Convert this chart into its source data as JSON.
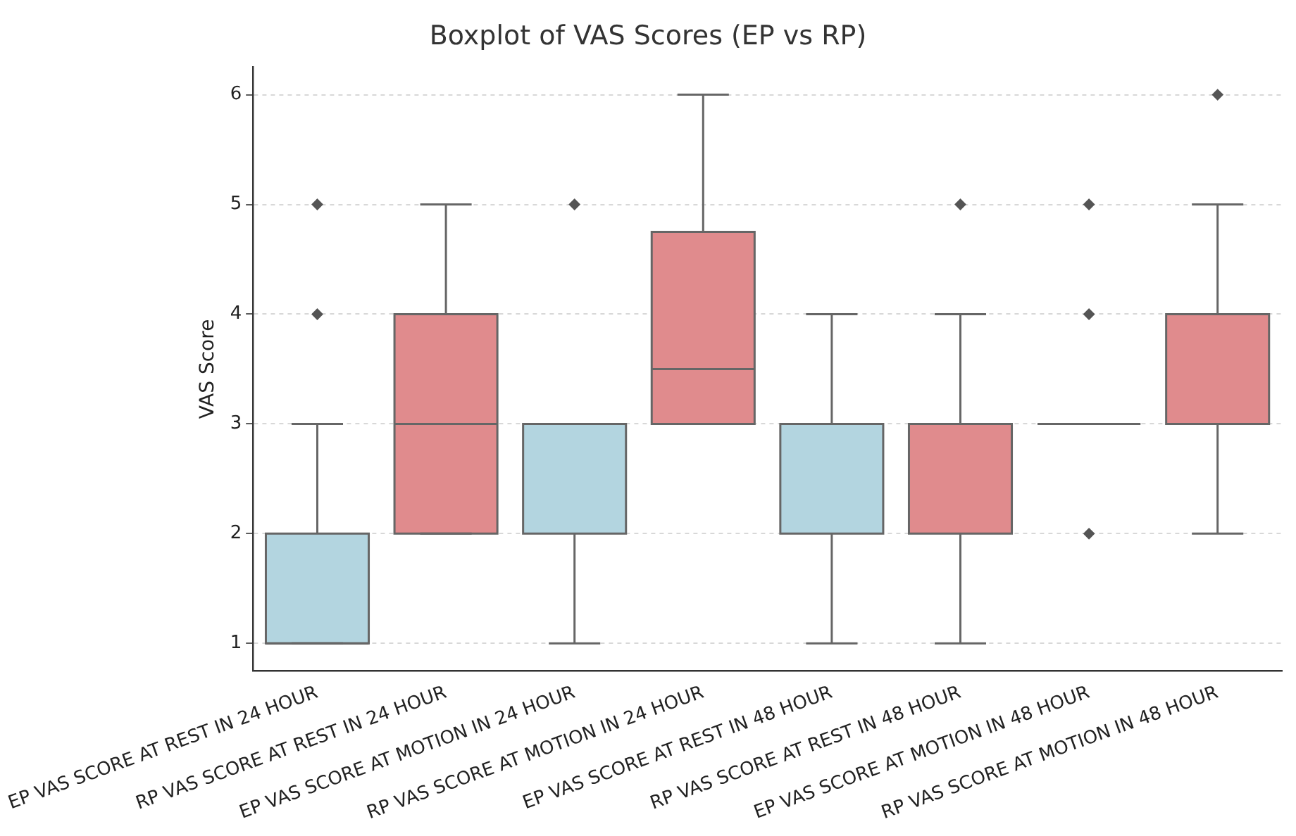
{
  "chart_data": {
    "type": "box",
    "title": "Boxplot of VAS Scores (EP vs RP)",
    "ylabel": "VAS Score",
    "categories": [
      "EP VAS SCORE AT REST IN 24 HOUR",
      "RP VAS SCORE AT REST IN 24 HOUR",
      "EP VAS SCORE AT MOTION IN 24 HOUR",
      "RP VAS SCORE AT MOTION IN 24 HOUR",
      "EP VAS SCORE AT REST IN 48 HOUR",
      "RP VAS SCORE AT REST IN 48 HOUR",
      "EP VAS SCORE AT MOTION IN 48 HOUR",
      "RP VAS SCORE AT MOTION IN 48 HOUR"
    ],
    "boxes": [
      {
        "low": 1,
        "q1": 1,
        "median": 1,
        "q3": 2,
        "high": 3,
        "outliers": [
          4,
          5
        ]
      },
      {
        "low": 2,
        "q1": 2,
        "median": 3,
        "q3": 4,
        "high": 5
      },
      {
        "low": 1,
        "q1": 2,
        "median": 3,
        "q3": 3,
        "high": 3,
        "outliers": [
          5
        ]
      },
      {
        "low": 3,
        "q1": 3,
        "median": 3.5,
        "q3": 4.75,
        "high": 6
      },
      {
        "low": 1,
        "q1": 2,
        "median": 3,
        "q3": 3,
        "high": 4
      },
      {
        "low": 1,
        "q1": 2,
        "median": 3,
        "q3": 3,
        "high": 4,
        "outliers": [
          5
        ]
      },
      {
        "low": 3,
        "q1": 3,
        "median": 3,
        "q3": 3,
        "high": 3,
        "outliers": [
          2,
          4,
          5
        ]
      },
      {
        "low": 2,
        "q1": 3,
        "median": 3,
        "q3": 4,
        "high": 5,
        "outliers": [
          6
        ]
      }
    ],
    "colors": [
      "#b3d5e0",
      "#e08b8d",
      "#b3d5e0",
      "#e08b8d",
      "#b3d5e0",
      "#e08b8d",
      "#666666",
      "#e08b8d"
    ],
    "ylim": [
      0.75,
      6.25
    ],
    "yticks": [
      1,
      2,
      3,
      4,
      5,
      6
    ],
    "grid": "y",
    "legend": false,
    "marker": "diamond"
  }
}
